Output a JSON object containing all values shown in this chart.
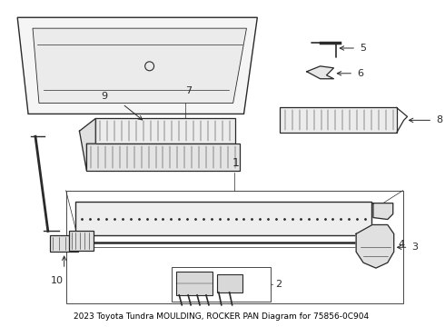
{
  "title": "2023 Toyota Tundra MOULDING, ROCKER PAN Diagram for 75856-0C904",
  "bg_color": "#ffffff",
  "line_color": "#2a2a2a",
  "label_color": "#000000",
  "font_size": 8,
  "font_size_title": 6.5
}
